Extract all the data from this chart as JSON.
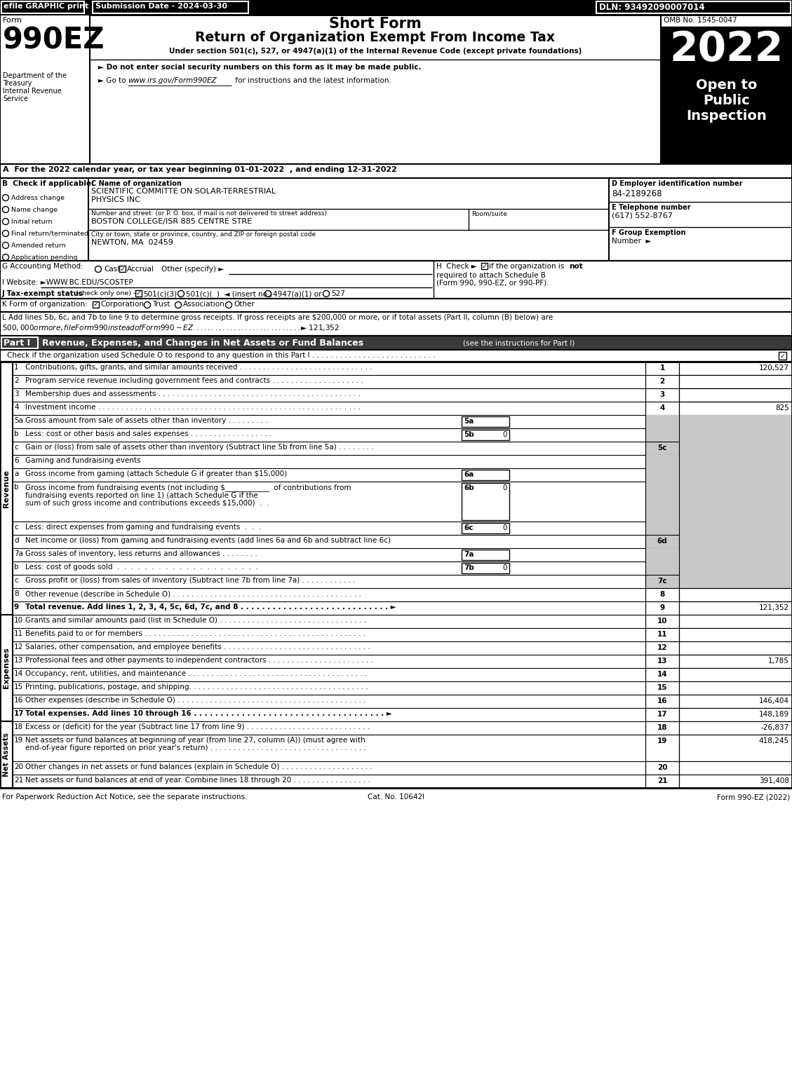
{
  "efile_label": "efile GRAPHIC print",
  "submission_date": "Submission Date - 2024-03-30",
  "dln": "DLN: 93492090007014",
  "omb": "OMB No. 1545-0047",
  "title_short_form": "Short Form",
  "title_main": "Return of Organization Exempt From Income Tax",
  "subtitle": "Under section 501(c), 527, or 4947(a)(1) of the Internal Revenue Code (except private foundations)",
  "bullet1": "► Do not enter social security numbers on this form as it may be made public.",
  "bullet2_pre": "► Go to ",
  "bullet2_url": "www.irs.gov/Form990EZ",
  "bullet2_post": " for instructions and the latest information.",
  "open_to": "Open to\nPublic\nInspection",
  "section_a": "A  For the 2022 calendar year, or tax year beginning 01-01-2022  , and ending 12-31-2022",
  "org_name_label": "C Name of organization",
  "org_name1": "SCIENTIFIC COMMITTE ON SOLAR-TERRESTRIAL",
  "org_name2": "PHYSICS INC",
  "ein_label": "D Employer identification number",
  "ein": "84-2189268",
  "address_label": "Number and street: (or P. O. box, if mail is not delivered to street address)",
  "room_label": "Room/suite",
  "address": "BOSTON COLLEGE/ISR 885 CENTRE STRE",
  "city_label": "City or town, state or province, country, and ZIP or foreign postal code",
  "city": "NEWTON, MA  02459",
  "phone_label": "E Telephone number",
  "phone": "(617) 552-8767",
  "group_label": "F Group Exemption",
  "group_num": "Number  ►",
  "checkboxes_b": [
    "Address change",
    "Name change",
    "Initial return",
    "Final return/terminated",
    "Amended return",
    "Application pending"
  ],
  "website": "I Website: ►WWW.BC.EDU/SCOSTEP",
  "footer_left": "For Paperwork Reduction Act Notice, see the separate instructions.",
  "footer_cat": "Cat. No. 10642I",
  "footer_right": "Form 990-EZ (2022)",
  "revenue_lines": [
    {
      "num": "1",
      "bold": false,
      "text": "Contributions, gifts, grants, and similar amounts received . . . . . . . . . . . . . . . . . . . . . . . . . . . . .",
      "ref": "1",
      "val": "120,527",
      "type": "normal"
    },
    {
      "num": "2",
      "bold": false,
      "text": "Program service revenue including government fees and contracts . . . . . . . . . . . . . . . . . . . .",
      "ref": "2",
      "val": "",
      "type": "normal"
    },
    {
      "num": "3",
      "bold": false,
      "text": "Membership dues and assessments . . . . . . . . . . . . . . . . . . . . . . . . . . . . . . . . . . . . . . . . . . . .",
      "ref": "3",
      "val": "",
      "type": "normal"
    },
    {
      "num": "4",
      "bold": false,
      "text": "Investment income . . . . . . . . . . . . . . . . . . . . . . . . . . . . . . . . . . . . . . . . . . . . . . . . . . . . . . . . .",
      "ref": "4",
      "val": "825",
      "type": "normal"
    },
    {
      "num": "5a",
      "bold": false,
      "text": "Gross amount from sale of assets other than inventory . . . . . . . . .",
      "ref": "5a",
      "val": "",
      "type": "sub_left",
      "gray_right": true
    },
    {
      "num": "b",
      "bold": false,
      "text": "Less: cost or other basis and sales expenses . . . . . . . . . . . . . . . . . .",
      "ref": "5b",
      "val": "0",
      "type": "sub_left",
      "gray_right": true
    },
    {
      "num": "c",
      "bold": false,
      "text": "Gain or (loss) from sale of assets other than inventory (Subtract line 5b from line 5a) . . . . . . . .",
      "ref": "5c",
      "val": "",
      "type": "normal",
      "gray_right": true
    },
    {
      "num": "6",
      "bold": false,
      "text": "Gaming and fundraising events",
      "ref": "",
      "val": "",
      "type": "normal",
      "gray_right": true
    },
    {
      "num": "a",
      "bold": false,
      "text": "Gross income from gaming (attach Schedule G if greater than $15,000)",
      "ref": "6a",
      "val": "",
      "type": "sub_left",
      "gray_right": true
    },
    {
      "num": "b",
      "bold": false,
      "text_lines": [
        "Gross income from fundraising events (not including $____________  of contributions from",
        "fundraising events reported on line 1) (attach Schedule G if the",
        "sum of such gross income and contributions exceeds $15,000)  .  ."
      ],
      "ref": "6b",
      "val": "0",
      "type": "sub_left_multi",
      "gray_right": true
    },
    {
      "num": "c",
      "bold": false,
      "text": "Less: direct expenses from gaming and fundraising events  .  .  .",
      "ref": "6c",
      "val": "0",
      "type": "sub_left",
      "gray_right": true
    },
    {
      "num": "d",
      "bold": false,
      "text": "Net income or (loss) from gaming and fundraising events (add lines 6a and 6b and subtract line 6c)",
      "ref": "6d",
      "val": "",
      "type": "normal",
      "gray_right": true
    },
    {
      "num": "7a",
      "bold": false,
      "text": "Gross sales of inventory, less returns and allowances . . . . . . . .",
      "ref": "7a",
      "val": "",
      "type": "sub_left",
      "gray_right": true
    },
    {
      "num": "b",
      "bold": false,
      "text": "Less: cost of goods sold  .  .  .  .  .  .  .  .  .  .  .  .  .  .  .  .  .  .  .  .  .",
      "ref": "7b",
      "val": "0",
      "type": "sub_left",
      "gray_right": true
    },
    {
      "num": "c",
      "bold": false,
      "text": "Gross profit or (loss) from sales of inventory (Subtract line 7b from line 7a) . . . . . . . . . . . .",
      "ref": "7c",
      "val": "",
      "type": "normal",
      "gray_right": true
    },
    {
      "num": "8",
      "bold": false,
      "text": "Other revenue (describe in Schedule O) . . . . . . . . . . . . . . . . . . . . . . . . . . . . . . . . . . . . . . . . .",
      "ref": "8",
      "val": "",
      "type": "normal"
    },
    {
      "num": "9",
      "bold": true,
      "text": "Total revenue. Add lines 1, 2, 3, 4, 5c, 6d, 7c, and 8 . . . . . . . . . . . . . . . . . . . . . . . . . . . . ►",
      "ref": "9",
      "val": "121,352",
      "type": "normal"
    }
  ],
  "expense_lines": [
    {
      "num": "10",
      "bold": false,
      "text": "Grants and similar amounts paid (list in Schedule O) . . . . . . . . . . . . . . . . . . . . . . . . . . . . . . . .",
      "ref": "10",
      "val": ""
    },
    {
      "num": "11",
      "bold": false,
      "text": "Benefits paid to or for members . . . . . . . . . . . . . . . . . . . . . . . . . . . . . . . . . . . . . . . . . . . . . . . .",
      "ref": "11",
      "val": ""
    },
    {
      "num": "12",
      "bold": false,
      "text": "Salaries, other compensation, and employee benefits . . . . . . . . . . . . . . . . . . . . . . . . . . . . . . . .",
      "ref": "12",
      "val": ""
    },
    {
      "num": "13",
      "bold": false,
      "text": "Professional fees and other payments to independent contractors . . . . . . . . . . . . . . . . . . . . . . .",
      "ref": "13",
      "val": "1,785"
    },
    {
      "num": "14",
      "bold": false,
      "text": "Occupancy, rent, utilities, and maintenance . . . . . . . . . . . . . . . . . . . . . . . . . . . . . . . . . . . . . . .",
      "ref": "14",
      "val": ""
    },
    {
      "num": "15",
      "bold": false,
      "text": "Printing, publications, postage, and shipping. . . . . . . . . . . . . . . . . . . . . . . . . . . . . . . . . . . . . . .",
      "ref": "15",
      "val": ""
    },
    {
      "num": "16",
      "bold": false,
      "text": "Other expenses (describe in Schedule O) . . . . . . . . . . . . . . . . . . . . . . . . . . . . . . . . . . . . . . . . .",
      "ref": "16",
      "val": "146,404"
    },
    {
      "num": "17",
      "bold": true,
      "text": "Total expenses. Add lines 10 through 16 . . . . . . . . . . . . . . . . . . . . . . . . . . . . . . . . . . . . ►",
      "ref": "17",
      "val": "148,189"
    },
    {
      "num": "18",
      "bold": false,
      "text": "Excess or (deficit) for the year (Subtract line 17 from line 9) . . . . . . . . . . . . . . . . . . . . . . . . . . .",
      "ref": "18",
      "val": "-26,837"
    }
  ],
  "net_lines": [
    {
      "num": "19",
      "bold": false,
      "text_lines": [
        "Net assets or fund balances at beginning of year (from line 27, column (A)) (must agree with",
        "end-of-year figure reported on prior year's return) . . . . . . . . . . . . . . . . . . . . . . . . . . . . . . . . . ."
      ],
      "ref": "19",
      "val": "418,245"
    },
    {
      "num": "20",
      "bold": false,
      "text": "Other changes in net assets or fund balances (explain in Schedule O) . . . . . . . . . . . . . . . . . . . .",
      "ref": "20",
      "val": ""
    },
    {
      "num": "21",
      "bold": false,
      "text": "Net assets or fund balances at end of year. Combine lines 18 through 20 . . . . . . . . . . . . . . . . .",
      "ref": "21",
      "val": "391,408"
    }
  ]
}
